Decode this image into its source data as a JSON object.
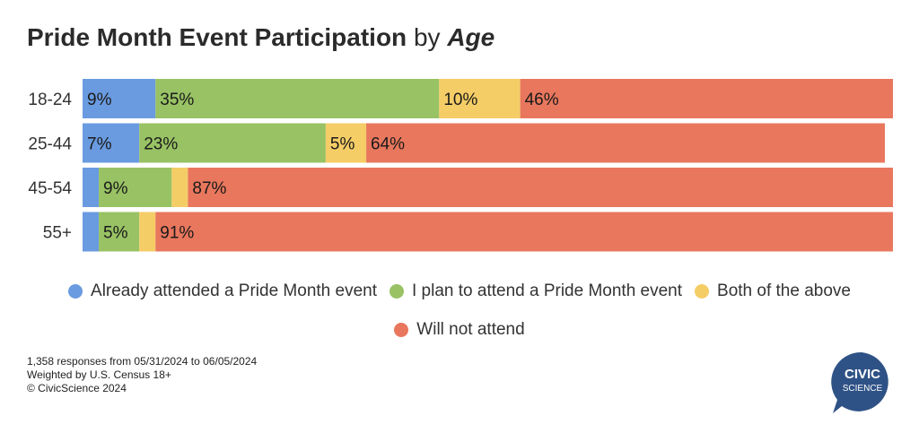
{
  "title": {
    "main": "Pride Month Event Participation",
    "by": "by",
    "emph": "Age"
  },
  "chart_data": {
    "type": "bar",
    "orientation": "horizontal",
    "stacked": true,
    "categories": [
      "18-24",
      "25-44",
      "45-54",
      "55+"
    ],
    "series": [
      {
        "name": "Already attended a Pride Month event",
        "color": "#6a9be0",
        "values": [
          9,
          7,
          2,
          2
        ],
        "labels": [
          "9%",
          "7%",
          "",
          ""
        ]
      },
      {
        "name": "I plan to attend a Pride Month event",
        "color": "#98c264",
        "values": [
          35,
          23,
          9,
          5
        ],
        "labels": [
          "35%",
          "23%",
          "9%",
          "5%"
        ]
      },
      {
        "name": "Both of the above",
        "color": "#f5cd66",
        "values": [
          10,
          5,
          2,
          2
        ],
        "labels": [
          "10%",
          "5%",
          "",
          ""
        ]
      },
      {
        "name": "Will not attend",
        "color": "#e8775d",
        "values": [
          46,
          64,
          87,
          91
        ],
        "labels": [
          "46%",
          "64%",
          "87%",
          "91%"
        ]
      }
    ],
    "xlim": [
      0,
      100
    ],
    "grid": false,
    "legend_position": "bottom"
  },
  "footnote": {
    "line1": "1,358 responses from 05/31/2024 to 06/05/2024",
    "line2": "Weighted by U.S. Census 18+",
    "line3": "© CivicScience 2024"
  },
  "logo": {
    "line1": "CIVIC",
    "line2": "SCIENCE",
    "color": "#2f5286"
  }
}
